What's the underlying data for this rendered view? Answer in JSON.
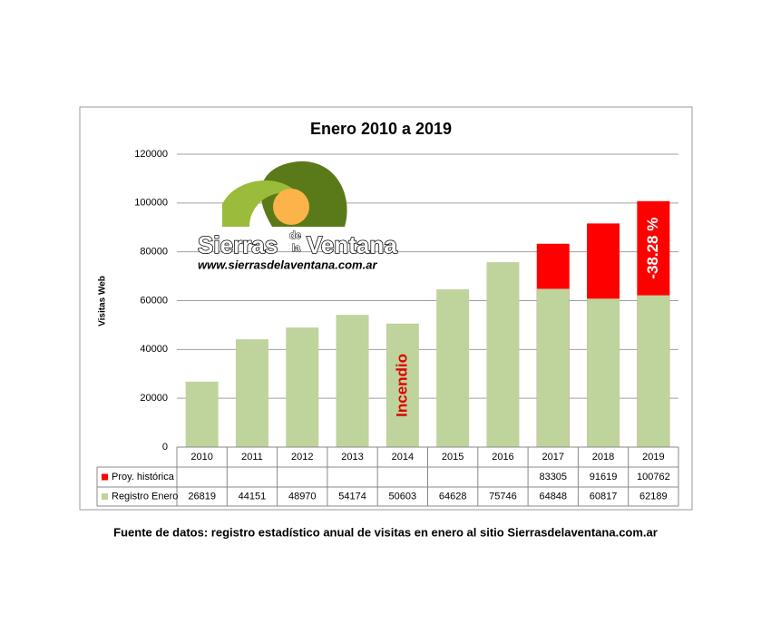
{
  "chart_data": {
    "type": "bar",
    "overlap": true,
    "title": "Enero 2010 a 2019",
    "y_label": "Visitas Web",
    "categories": [
      "2010",
      "2011",
      "2012",
      "2013",
      "2014",
      "2015",
      "2016",
      "2017",
      "2018",
      "2019"
    ],
    "series": [
      {
        "name": "Proy. histórica",
        "color": "#ff0000",
        "values": [
          null,
          null,
          null,
          null,
          null,
          null,
          null,
          83305,
          91619,
          100762
        ]
      },
      {
        "name": "Registro Enero",
        "color": "#bfd39c",
        "values": [
          26819,
          44151,
          48970,
          54174,
          50603,
          64628,
          75746,
          64848,
          60817,
          62189
        ]
      }
    ],
    "ylim": [
      0,
      120000
    ],
    "yticks": [
      0,
      20000,
      40000,
      60000,
      80000,
      100000,
      120000
    ],
    "grid": true,
    "annotations": [
      {
        "text": "Incendio",
        "category": 4
      },
      {
        "text": "-38.28 %",
        "category": 9
      }
    ],
    "logo": {
      "word1": "Sierras",
      "de": "de",
      "la": "la",
      "word2": "Ventana",
      "url": "www.sierrasdelaventana.com.ar"
    },
    "source": "Fuente de datos: registro estadístico anual de visitas en enero al sitio Sierrasdelaventana.com.ar"
  }
}
